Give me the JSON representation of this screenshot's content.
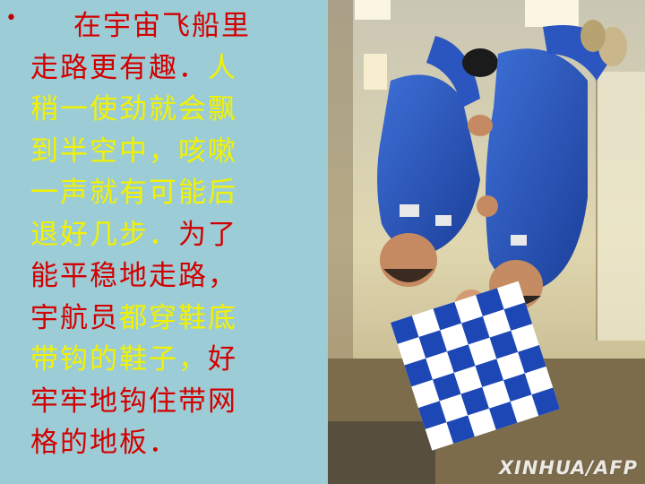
{
  "slide": {
    "bullet": "•",
    "lines": [
      [
        {
          "text": "在宇宙飞船里",
          "color": "red"
        }
      ],
      [
        {
          "text": "走路更有趣．",
          "color": "red"
        },
        {
          "text": "人",
          "color": "yellow"
        }
      ],
      [
        {
          "text": "稍一使劲就会飘",
          "color": "yellow"
        }
      ],
      [
        {
          "text": "到半空中，咳嗽",
          "color": "yellow"
        }
      ],
      [
        {
          "text": "一声就有可能后",
          "color": "yellow"
        }
      ],
      [
        {
          "text": "退好几步．",
          "color": "yellow"
        },
        {
          "text": "为了",
          "color": "red"
        }
      ],
      [
        {
          "text": "能平稳地走路，",
          "color": "red"
        }
      ],
      [
        {
          "text": "宇航员",
          "color": "red"
        },
        {
          "text": "都穿鞋底",
          "color": "yellow"
        }
      ],
      [
        {
          "text": "带钩的鞋子，",
          "color": "yellow"
        },
        {
          "text": "好",
          "color": "red"
        }
      ],
      [
        {
          "text": "牢牢地钩住带网",
          "color": "red"
        }
      ],
      [
        {
          "text": "格的地板．",
          "color": "red"
        }
      ]
    ],
    "colors": {
      "background": "#9CCDD6",
      "red": "#D20000",
      "yellow": "#F2F200"
    }
  },
  "photo": {
    "subject": "astronauts floating upside down in a weightless cabin holding a blue and white checkered flag",
    "credit": "XINHUA/AFP"
  }
}
